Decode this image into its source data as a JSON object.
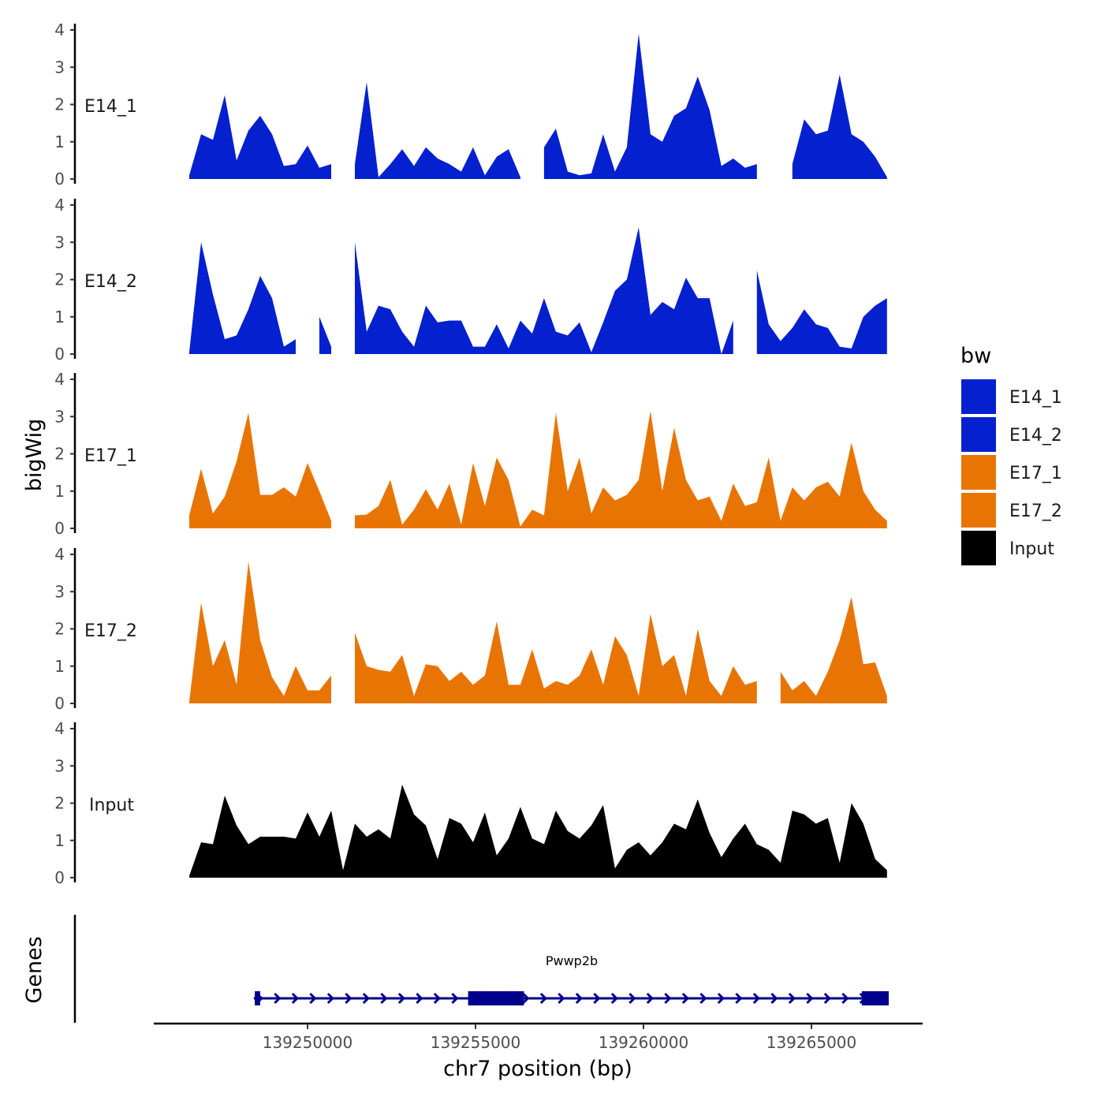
{
  "chart_data": {
    "type": "area",
    "xlabel": "chr7 position (bp)",
    "ylabel": "bigWig",
    "gene_track_label": "Genes",
    "ylim": [
      0,
      4
    ],
    "yticks": [
      "0",
      "1",
      "2",
      "3",
      "4"
    ],
    "xticks": [
      {
        "value": 139250000,
        "label": "139250000"
      },
      {
        "value": 139255000,
        "label": "139255000"
      },
      {
        "value": 139260000,
        "label": "139260000"
      },
      {
        "value": 139265000,
        "label": "139265000"
      }
    ],
    "xlim": [
      139242700,
      139269600
    ],
    "sample_start_bp": 139246480,
    "sample_step_bp": 352,
    "legend": {
      "title": "bw",
      "position": "right"
    },
    "series": [
      {
        "name": "E14_1",
        "color": "#0420CF",
        "values": [
          0.1,
          1.2,
          1.05,
          2.25,
          0.5,
          1.3,
          1.7,
          1.2,
          0.35,
          0.4,
          0.9,
          0.3,
          0.4,
          null,
          0.4,
          2.6,
          0.05,
          0.4,
          0.8,
          0.35,
          0.85,
          0.55,
          0.4,
          0.2,
          0.85,
          0.1,
          0.6,
          0.8,
          0.05,
          null,
          0.85,
          1.35,
          0.2,
          0.1,
          0.15,
          1.2,
          0.2,
          0.85,
          3.9,
          1.2,
          1.0,
          1.7,
          1.9,
          2.75,
          1.85,
          0.35,
          0.55,
          0.3,
          0.4,
          null,
          null,
          0.4,
          1.6,
          1.2,
          1.3,
          2.8,
          1.2,
          1.0,
          0.6,
          0.05
        ]
      },
      {
        "name": "E14_2",
        "color": "#0420CF",
        "values": [
          0.05,
          3.0,
          1.6,
          0.4,
          0.5,
          1.2,
          2.1,
          1.5,
          0.2,
          0.4,
          null,
          1.0,
          0.2,
          null,
          3.0,
          0.6,
          1.3,
          1.2,
          0.6,
          0.2,
          1.3,
          0.85,
          0.9,
          0.9,
          0.2,
          0.2,
          0.8,
          0.15,
          0.9,
          0.55,
          1.5,
          0.6,
          0.5,
          0.85,
          0.05,
          0.85,
          1.7,
          2.0,
          3.4,
          1.05,
          1.4,
          1.2,
          2.05,
          1.5,
          1.5,
          0,
          0.9,
          null,
          2.25,
          0.8,
          0.35,
          0.7,
          1.2,
          0.8,
          0.7,
          0.2,
          0.15,
          1.0,
          1.3,
          1.5
        ]
      },
      {
        "name": "E17_1",
        "color": "#E87503",
        "values": [
          0.35,
          1.6,
          0.4,
          0.85,
          1.8,
          3.1,
          0.9,
          0.9,
          1.1,
          0.85,
          1.75,
          1.0,
          0.2,
          null,
          0.35,
          0.37,
          0.6,
          1.3,
          0.1,
          0.5,
          1.05,
          0.5,
          1.2,
          0.1,
          1.75,
          0.6,
          1.9,
          1.3,
          0.05,
          0.5,
          0.35,
          3.1,
          1.0,
          1.9,
          0.4,
          1.1,
          0.75,
          0.9,
          1.3,
          3.15,
          1.0,
          2.7,
          1.3,
          0.75,
          0.85,
          0.2,
          1.2,
          0.6,
          0.7,
          1.9,
          0.2,
          1.1,
          0.75,
          1.1,
          1.25,
          0.85,
          2.3,
          1.0,
          0.5,
          0.2
        ]
      },
      {
        "name": "E17_2",
        "color": "#E87503",
        "values": [
          0.05,
          2.7,
          1.0,
          1.7,
          0.5,
          3.8,
          1.7,
          0.7,
          0.2,
          1.0,
          0.35,
          0.35,
          0.75,
          null,
          1.9,
          1.0,
          0.9,
          0.85,
          1.3,
          0.2,
          1.05,
          1.0,
          0.6,
          0.85,
          0.5,
          0.75,
          2.2,
          0.5,
          0.5,
          1.45,
          0.4,
          0.6,
          0.5,
          0.75,
          1.45,
          0.5,
          1.8,
          1.3,
          0.2,
          2.4,
          1.0,
          1.3,
          0.2,
          2.0,
          0.6,
          0.2,
          1.0,
          0.5,
          0.6,
          null,
          0.85,
          0.35,
          0.6,
          0.2,
          0.85,
          1.7,
          2.85,
          1.05,
          1.1,
          0.2
        ]
      },
      {
        "name": "Input",
        "color": "#000000",
        "values": [
          0.05,
          0.95,
          0.9,
          2.2,
          1.4,
          0.9,
          1.1,
          1.1,
          1.1,
          1.05,
          1.75,
          1.1,
          1.8,
          0.2,
          1.45,
          1.1,
          1.3,
          1.05,
          2.5,
          1.7,
          1.4,
          0.5,
          1.6,
          1.45,
          0.95,
          1.75,
          0.6,
          1.05,
          1.9,
          1.05,
          0.9,
          1.8,
          1.25,
          1.05,
          1.4,
          1.95,
          0.25,
          0.75,
          0.95,
          0.6,
          0.95,
          1.45,
          1.3,
          2.1,
          1.2,
          0.55,
          1.05,
          1.45,
          0.9,
          0.75,
          0.4,
          1.8,
          1.7,
          1.45,
          1.6,
          0.4,
          2.0,
          1.45,
          0.5,
          0.2
        ]
      }
    ],
    "genes": [
      {
        "name": "Pwwp2b",
        "start": 139248400,
        "end": 139267300,
        "strand": "+",
        "color": "#00008B",
        "exons": [
          [
            139248430,
            139248590
          ],
          [
            139254780,
            139256440
          ],
          [
            139266500,
            139267300
          ]
        ]
      }
    ]
  }
}
